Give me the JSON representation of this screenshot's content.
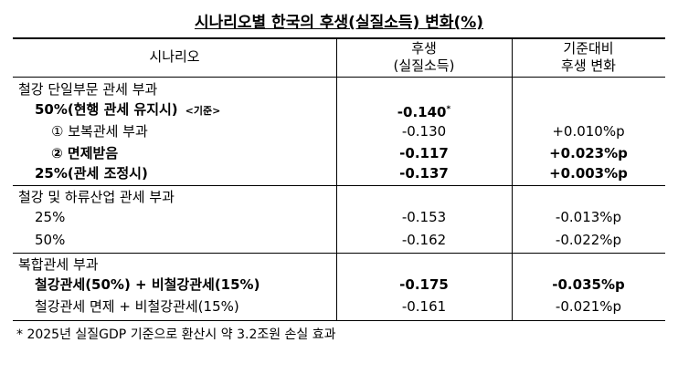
{
  "title": "시나리오별 한국의 후생(실질소득) 변화(%)",
  "header": {
    "scenario": "시나리오",
    "welfare": [
      "후생",
      "(실질소득)"
    ],
    "change": [
      "기준대비",
      "후생 변화"
    ]
  },
  "groups": [
    {
      "heading": "철강 단일부문 관세 부과",
      "rows": [
        {
          "label": "50%(현행 관세 유지시)",
          "note": "<기준>",
          "welfare": "-0.140",
          "marker": "*",
          "bold": true
        },
        {
          "label": "① 보복관세 부과",
          "welfare": "-0.130",
          "change": "+0.010%p",
          "bold": false
        },
        {
          "label": "② 면제받음",
          "welfare": "-0.117",
          "change": "+0.023%p",
          "bold": true
        },
        {
          "label": "25%(관세 조정시)",
          "welfare": "-0.137",
          "change": "+0.003%p",
          "bold": true
        }
      ]
    },
    {
      "heading": "철강 및 하류산업 관세 부과",
      "rows": [
        {
          "label": "25%",
          "welfare": "-0.153",
          "change": "-0.013%p",
          "bold": false
        },
        {
          "label": "50%",
          "welfare": "-0.162",
          "change": "-0.022%p",
          "bold": false
        }
      ]
    },
    {
      "heading": "복합관세 부과",
      "rows": [
        {
          "label": "철강관세(50%) + 비철강관세(15%)",
          "welfare": "-0.175",
          "change": "-0.035%p",
          "bold": true
        },
        {
          "label": "철강관세 면제 + 비철강관세(15%)",
          "welfare": "-0.161",
          "change": "-0.021%p",
          "bold": false
        }
      ]
    }
  ],
  "footnote": "* 2025년 실질GDP 기준으로 환산시 약 3.2조원 손실 효과"
}
